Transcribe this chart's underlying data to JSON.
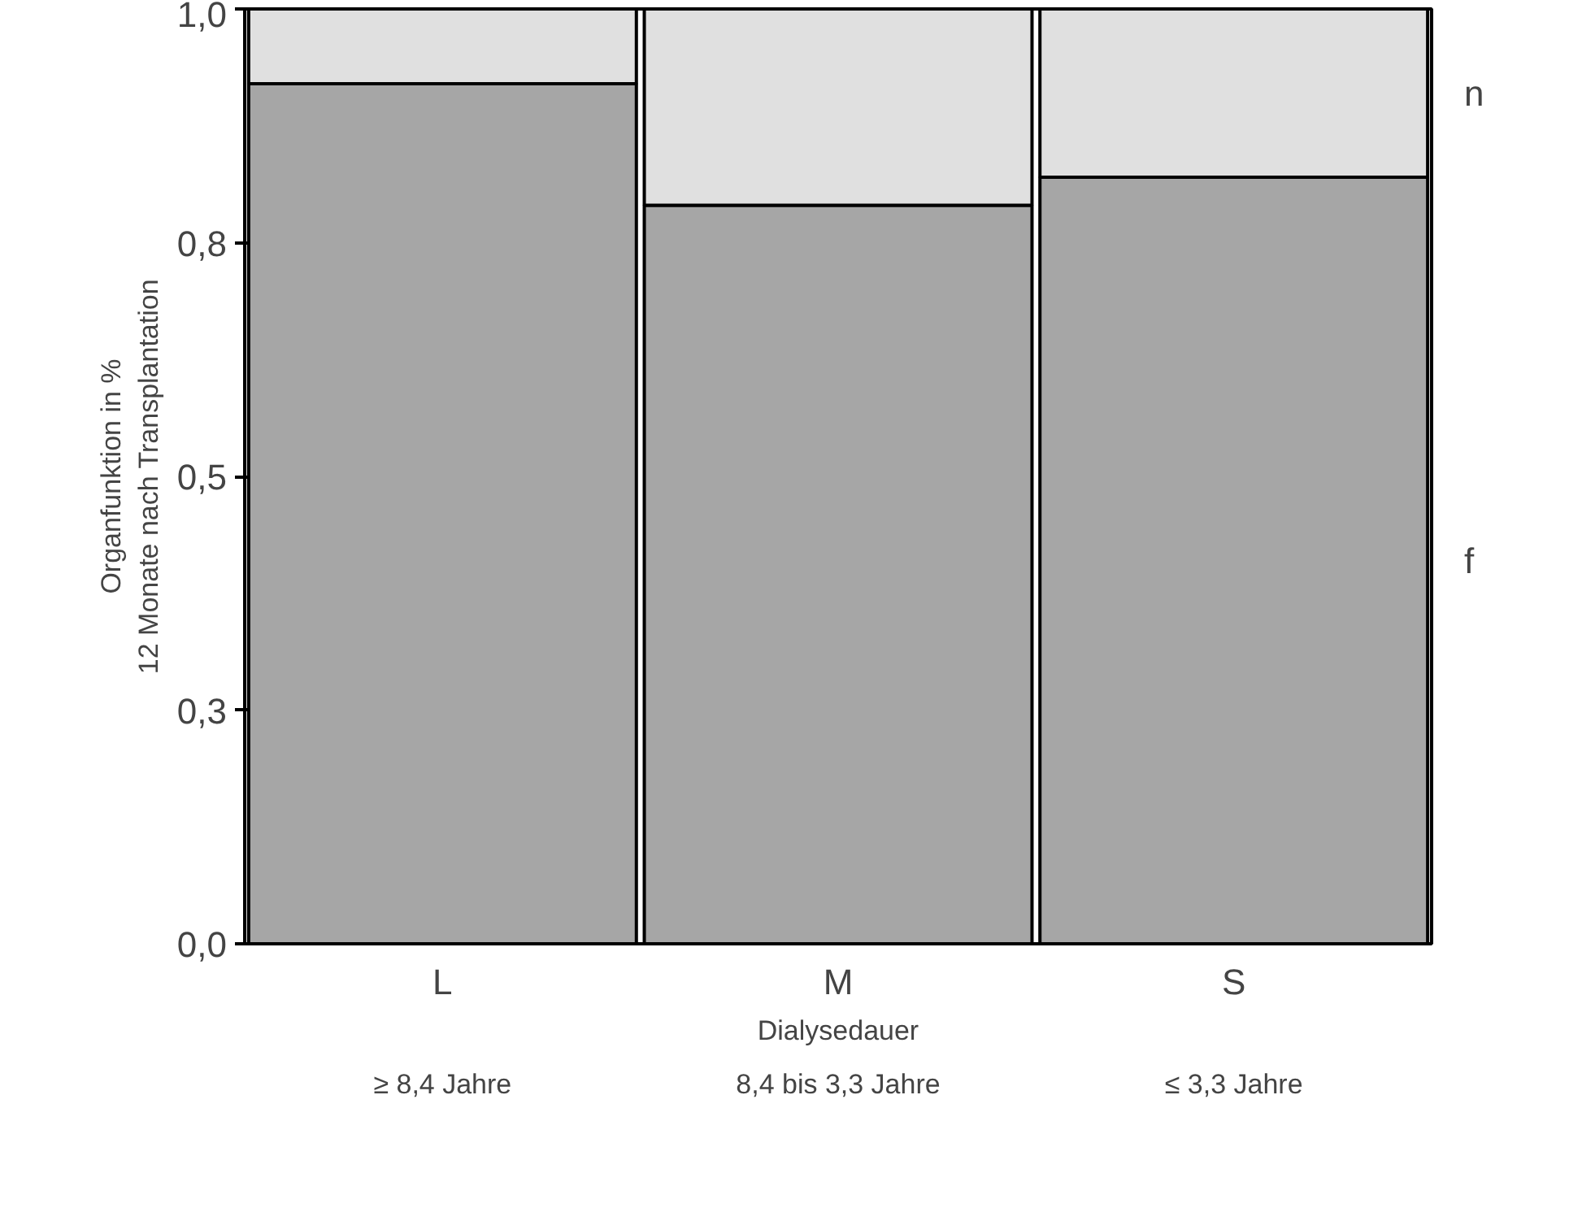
{
  "chart_data": {
    "type": "bar",
    "stacked": true,
    "xlabel": "Dialysedauer",
    "ylabel": "Organfunktion in %\n12 Monate nach Transplantation",
    "categories": [
      "L",
      "M",
      "S"
    ],
    "series": [
      {
        "name": "f",
        "color": "#a6a6a6",
        "values": [
          0.92,
          0.79,
          0.82
        ]
      },
      {
        "name": "n",
        "color": "#e0e0e0",
        "values": [
          0.08,
          0.21,
          0.18
        ]
      }
    ],
    "ylim": [
      0,
      1
    ],
    "yticks": [
      {
        "value": 0,
        "label": "0,0"
      },
      {
        "value": 0.25,
        "label": "0,3"
      },
      {
        "value": 0.5,
        "label": "0,5"
      },
      {
        "value": 0.75,
        "label": "0,8"
      },
      {
        "value": 1,
        "label": "1,0"
      }
    ],
    "annotations": [
      "≥ 8,4 Jahre",
      "8,4 bis 3,3 Jahre",
      "≤ 3,3 Jahre"
    ],
    "grid": false
  }
}
